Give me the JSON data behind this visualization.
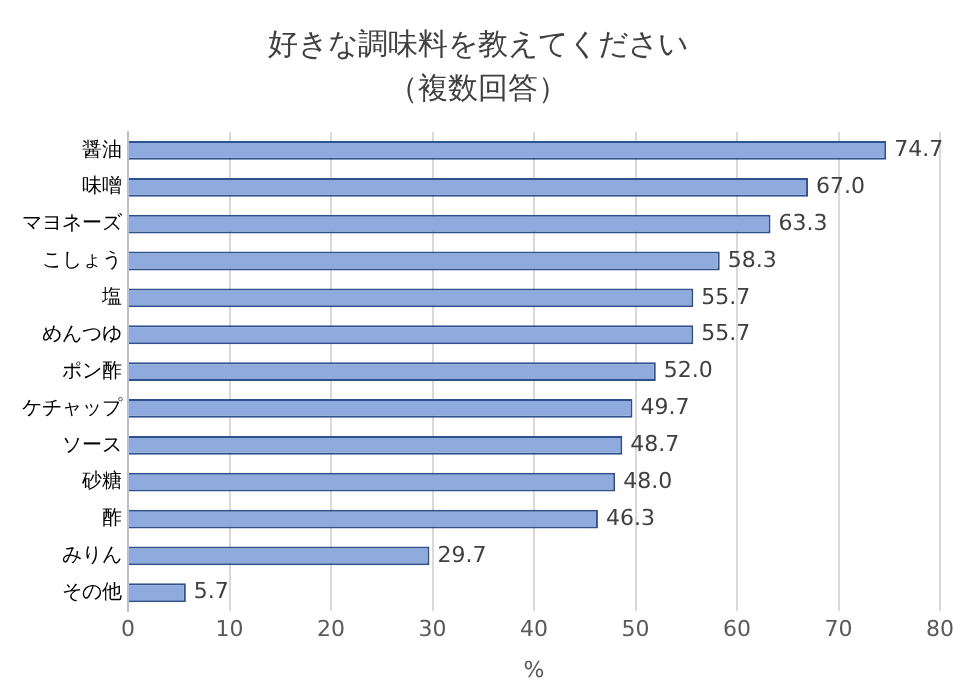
{
  "chart_data": {
    "type": "bar",
    "orientation": "horizontal",
    "title": "好きな調味料を教えてください",
    "subtitle": "（複数回答）",
    "xlabel": "%",
    "categories": [
      "醤油",
      "味噌",
      "マヨネーズ",
      "こしょう",
      "塩",
      "めんつゆ",
      "ポン酢",
      "ケチャップ",
      "ソース",
      "砂糖",
      "酢",
      "みりん",
      "その他"
    ],
    "values": [
      74.7,
      67.0,
      63.3,
      58.3,
      55.7,
      55.7,
      52.0,
      49.7,
      48.7,
      48.0,
      46.3,
      29.7,
      5.7
    ],
    "value_labels": [
      "74.7",
      "67.0",
      "63.3",
      "58.3",
      "55.7",
      "55.7",
      "52.0",
      "49.7",
      "48.7",
      "48.0",
      "46.3",
      "29.7",
      "5.7"
    ],
    "color": "#8faadc",
    "xlim": [
      0,
      80
    ],
    "xticks": [
      0,
      10,
      20,
      30,
      40,
      50,
      60,
      70,
      80
    ],
    "grid": "x",
    "legend": false
  }
}
